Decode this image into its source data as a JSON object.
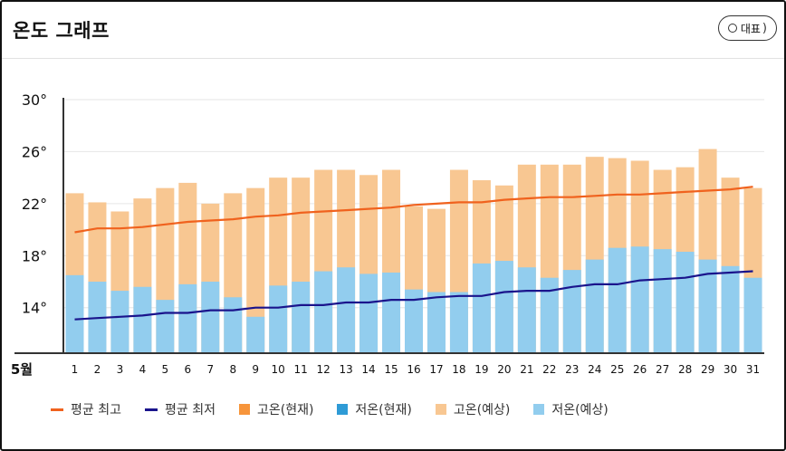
{
  "header": {
    "title": "온도 그래프",
    "rep_button_label": "대표"
  },
  "colors": {
    "high_current": "#f7953b",
    "low_current": "#2e9bd6",
    "high_forecast": "#f8c792",
    "low_forecast": "#92cdee",
    "avg_high_line": "#f0621e",
    "avg_low_line": "#1a148c"
  },
  "legend": [
    {
      "label": "평균 최고",
      "kind": "line",
      "color_key": "avg_high_line"
    },
    {
      "label": "평균 최저",
      "kind": "line",
      "color_key": "avg_low_line"
    },
    {
      "label": "고온(현재)",
      "kind": "box",
      "color_key": "high_current"
    },
    {
      "label": "저온(현재)",
      "kind": "box",
      "color_key": "low_current"
    },
    {
      "label": "고온(예상)",
      "kind": "box",
      "color_key": "high_forecast"
    },
    {
      "label": "저온(예상)",
      "kind": "box",
      "color_key": "low_forecast"
    }
  ],
  "chart_data": {
    "type": "bar",
    "month_label": "5월",
    "categories": [
      "1",
      "2",
      "3",
      "4",
      "5",
      "6",
      "7",
      "8",
      "9",
      "10",
      "11",
      "12",
      "13",
      "14",
      "15",
      "16",
      "17",
      "18",
      "19",
      "20",
      "21",
      "22",
      "23",
      "24",
      "25",
      "26",
      "27",
      "28",
      "29",
      "30",
      "31"
    ],
    "y_tick_labels": [
      "14°",
      "18°",
      "22°",
      "26°",
      "30°"
    ],
    "y_ticks": [
      14,
      18,
      22,
      26,
      30
    ],
    "ylim": [
      10.5,
      30
    ],
    "grid": true,
    "series": [
      {
        "name": "고온(예상)",
        "values": [
          22.8,
          22.1,
          21.4,
          22.4,
          23.2,
          23.6,
          22.0,
          22.8,
          23.2,
          24.0,
          24.0,
          24.6,
          24.6,
          24.2,
          24.6,
          21.8,
          21.6,
          24.6,
          23.8,
          23.4,
          25.0,
          25.0,
          25.0,
          25.6,
          25.5,
          25.3,
          24.6,
          24.8,
          26.2,
          24.0,
          23.2
        ]
      },
      {
        "name": "저온(예상)",
        "values": [
          16.5,
          16.0,
          15.3,
          15.6,
          14.6,
          15.8,
          16.0,
          14.8,
          13.3,
          15.7,
          16.0,
          16.8,
          17.1,
          16.6,
          16.7,
          15.4,
          15.2,
          15.2,
          17.4,
          17.6,
          17.1,
          16.3,
          16.9,
          17.7,
          18.6,
          18.7,
          18.5,
          18.3,
          17.7,
          17.2,
          16.3
        ]
      },
      {
        "name": "평균 최고",
        "values": [
          19.8,
          20.1,
          20.1,
          20.2,
          20.4,
          20.6,
          20.7,
          20.8,
          21.0,
          21.1,
          21.3,
          21.4,
          21.5,
          21.6,
          21.7,
          21.9,
          22.0,
          22.1,
          22.1,
          22.3,
          22.4,
          22.5,
          22.5,
          22.6,
          22.7,
          22.7,
          22.8,
          22.9,
          23.0,
          23.1,
          23.3
        ]
      },
      {
        "name": "평균 최저",
        "values": [
          13.1,
          13.2,
          13.3,
          13.4,
          13.6,
          13.6,
          13.8,
          13.8,
          14.0,
          14.0,
          14.2,
          14.2,
          14.4,
          14.4,
          14.6,
          14.6,
          14.8,
          14.9,
          14.9,
          15.2,
          15.3,
          15.3,
          15.6,
          15.8,
          15.8,
          16.1,
          16.2,
          16.3,
          16.6,
          16.7,
          16.8
        ]
      }
    ]
  }
}
